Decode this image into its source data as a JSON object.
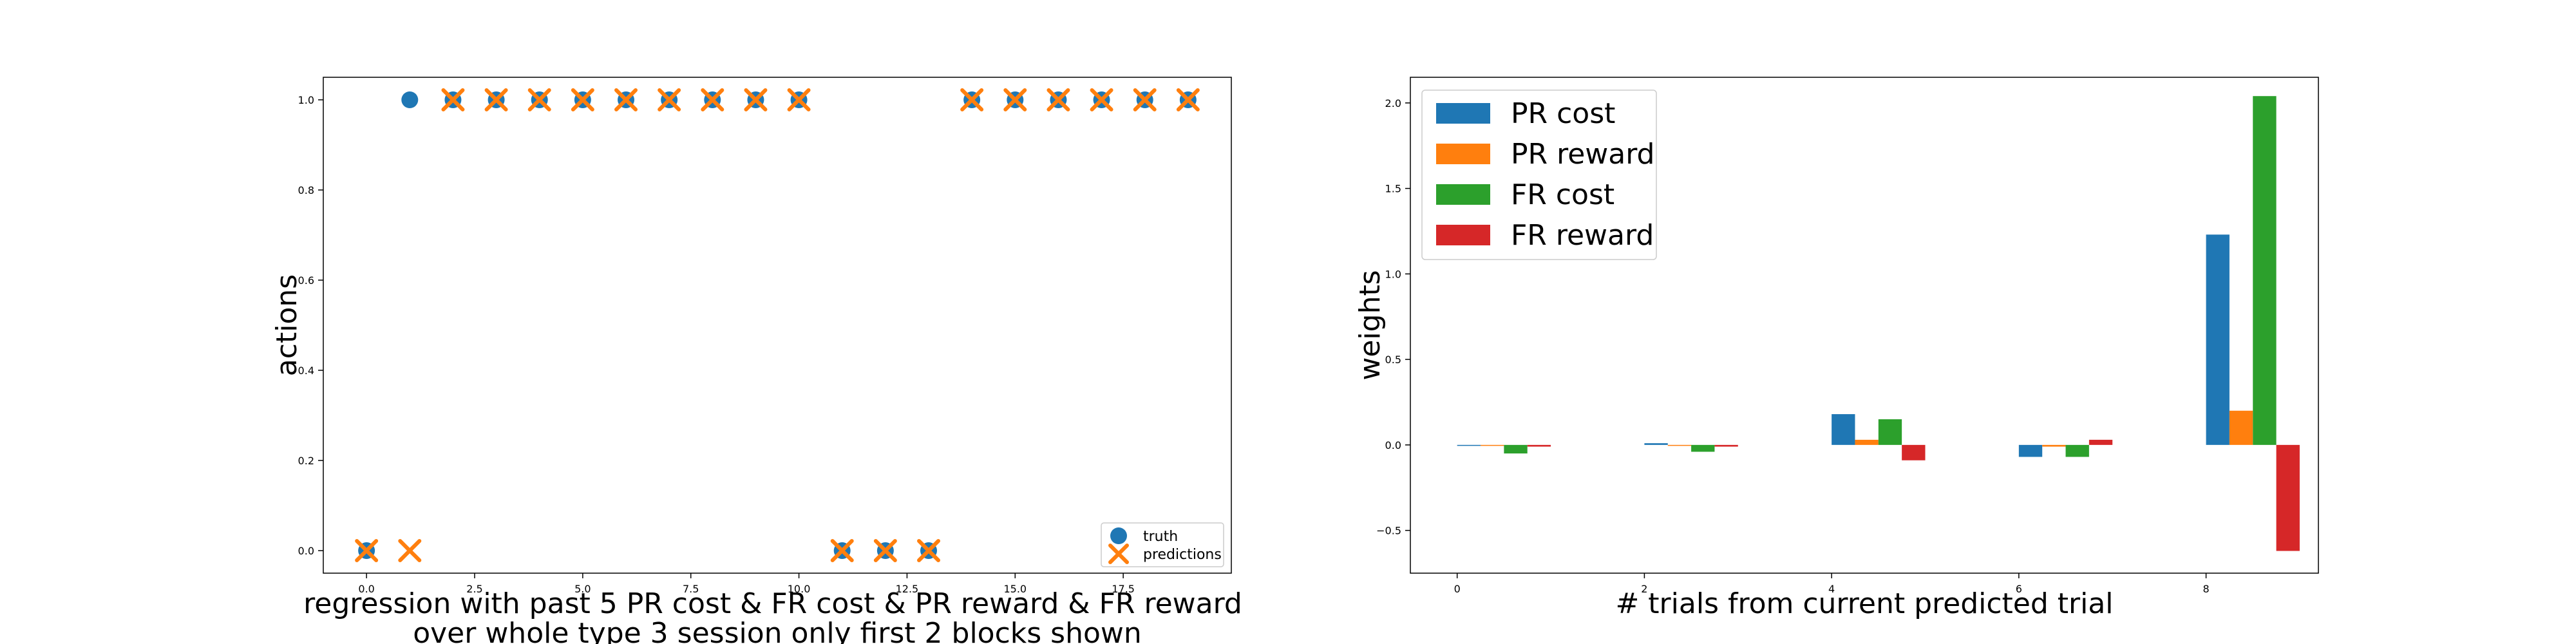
{
  "chart_data": [
    {
      "type": "scatter",
      "title": "",
      "xlabel": "regression with past 5 PR cost & FR cost & PR reward & FR reward\nover whole type 3 session only first 2 blocks shown",
      "ylabel": "actions",
      "xlim": [
        -1,
        20
      ],
      "ylim": [
        -0.05,
        1.05
      ],
      "x_ticks": [
        0.0,
        2.5,
        5.0,
        7.5,
        10.0,
        12.5,
        15.0,
        17.5
      ],
      "x_tick_labels": [
        "0.0",
        "2.5",
        "5.0",
        "7.5",
        "10.0",
        "12.5",
        "15.0",
        "17.5"
      ],
      "y_ticks": [
        0.0,
        0.2,
        0.4,
        0.6,
        0.8,
        1.0
      ],
      "y_tick_labels": [
        "0.0",
        "0.2",
        "0.4",
        "0.6",
        "0.8",
        "1.0"
      ],
      "grid": false,
      "legend": "lower-right",
      "series": [
        {
          "name": "truth",
          "color": "#1f77b4",
          "marker": "circle",
          "x": [
            0,
            1,
            2,
            3,
            4,
            5,
            6,
            7,
            8,
            9,
            10,
            11,
            12,
            13,
            14,
            15,
            16,
            17,
            18,
            19
          ],
          "y": [
            0,
            1,
            1,
            1,
            1,
            1,
            1,
            1,
            1,
            1,
            1,
            0,
            0,
            0,
            1,
            1,
            1,
            1,
            1,
            1
          ]
        },
        {
          "name": "predictions",
          "color": "#ff7f0e",
          "marker": "x",
          "x": [
            0,
            1,
            2,
            3,
            4,
            5,
            6,
            7,
            8,
            9,
            10,
            11,
            12,
            13,
            14,
            15,
            16,
            17,
            18,
            19
          ],
          "y": [
            0,
            0,
            1,
            1,
            1,
            1,
            1,
            1,
            1,
            1,
            1,
            0,
            0,
            0,
            1,
            1,
            1,
            1,
            1,
            1
          ]
        }
      ]
    },
    {
      "type": "bar",
      "title": "",
      "xlabel": "# trials from current predicted trial",
      "ylabel": "weights",
      "xlim": [
        -0.5,
        9.2
      ],
      "ylim": [
        -0.75,
        2.15
      ],
      "x_ticks": [
        0,
        2,
        4,
        6,
        8
      ],
      "x_tick_labels": [
        "0",
        "2",
        "4",
        "6",
        "8"
      ],
      "y_ticks": [
        -0.5,
        0.0,
        0.5,
        1.0,
        1.5,
        2.0
      ],
      "y_tick_labels": [
        "−0.5",
        "0.0",
        "0.5",
        "1.0",
        "1.5",
        "2.0"
      ],
      "grid": false,
      "legend": "top-left",
      "categories": [
        0,
        2,
        4,
        6,
        8
      ],
      "series": [
        {
          "name": "PR cost",
          "color": "#1f77b4",
          "values": [
            0.0,
            0.01,
            0.18,
            -0.07,
            1.23
          ]
        },
        {
          "name": "PR reward",
          "color": "#ff7f0e",
          "values": [
            0.0,
            0.0,
            0.03,
            -0.01,
            0.2
          ]
        },
        {
          "name": "FR cost",
          "color": "#2ca02c",
          "values": [
            -0.05,
            -0.04,
            0.15,
            -0.07,
            2.04
          ]
        },
        {
          "name": "FR reward",
          "color": "#d62728",
          "values": [
            -0.01,
            -0.01,
            -0.09,
            0.03,
            -0.62
          ]
        }
      ]
    }
  ]
}
